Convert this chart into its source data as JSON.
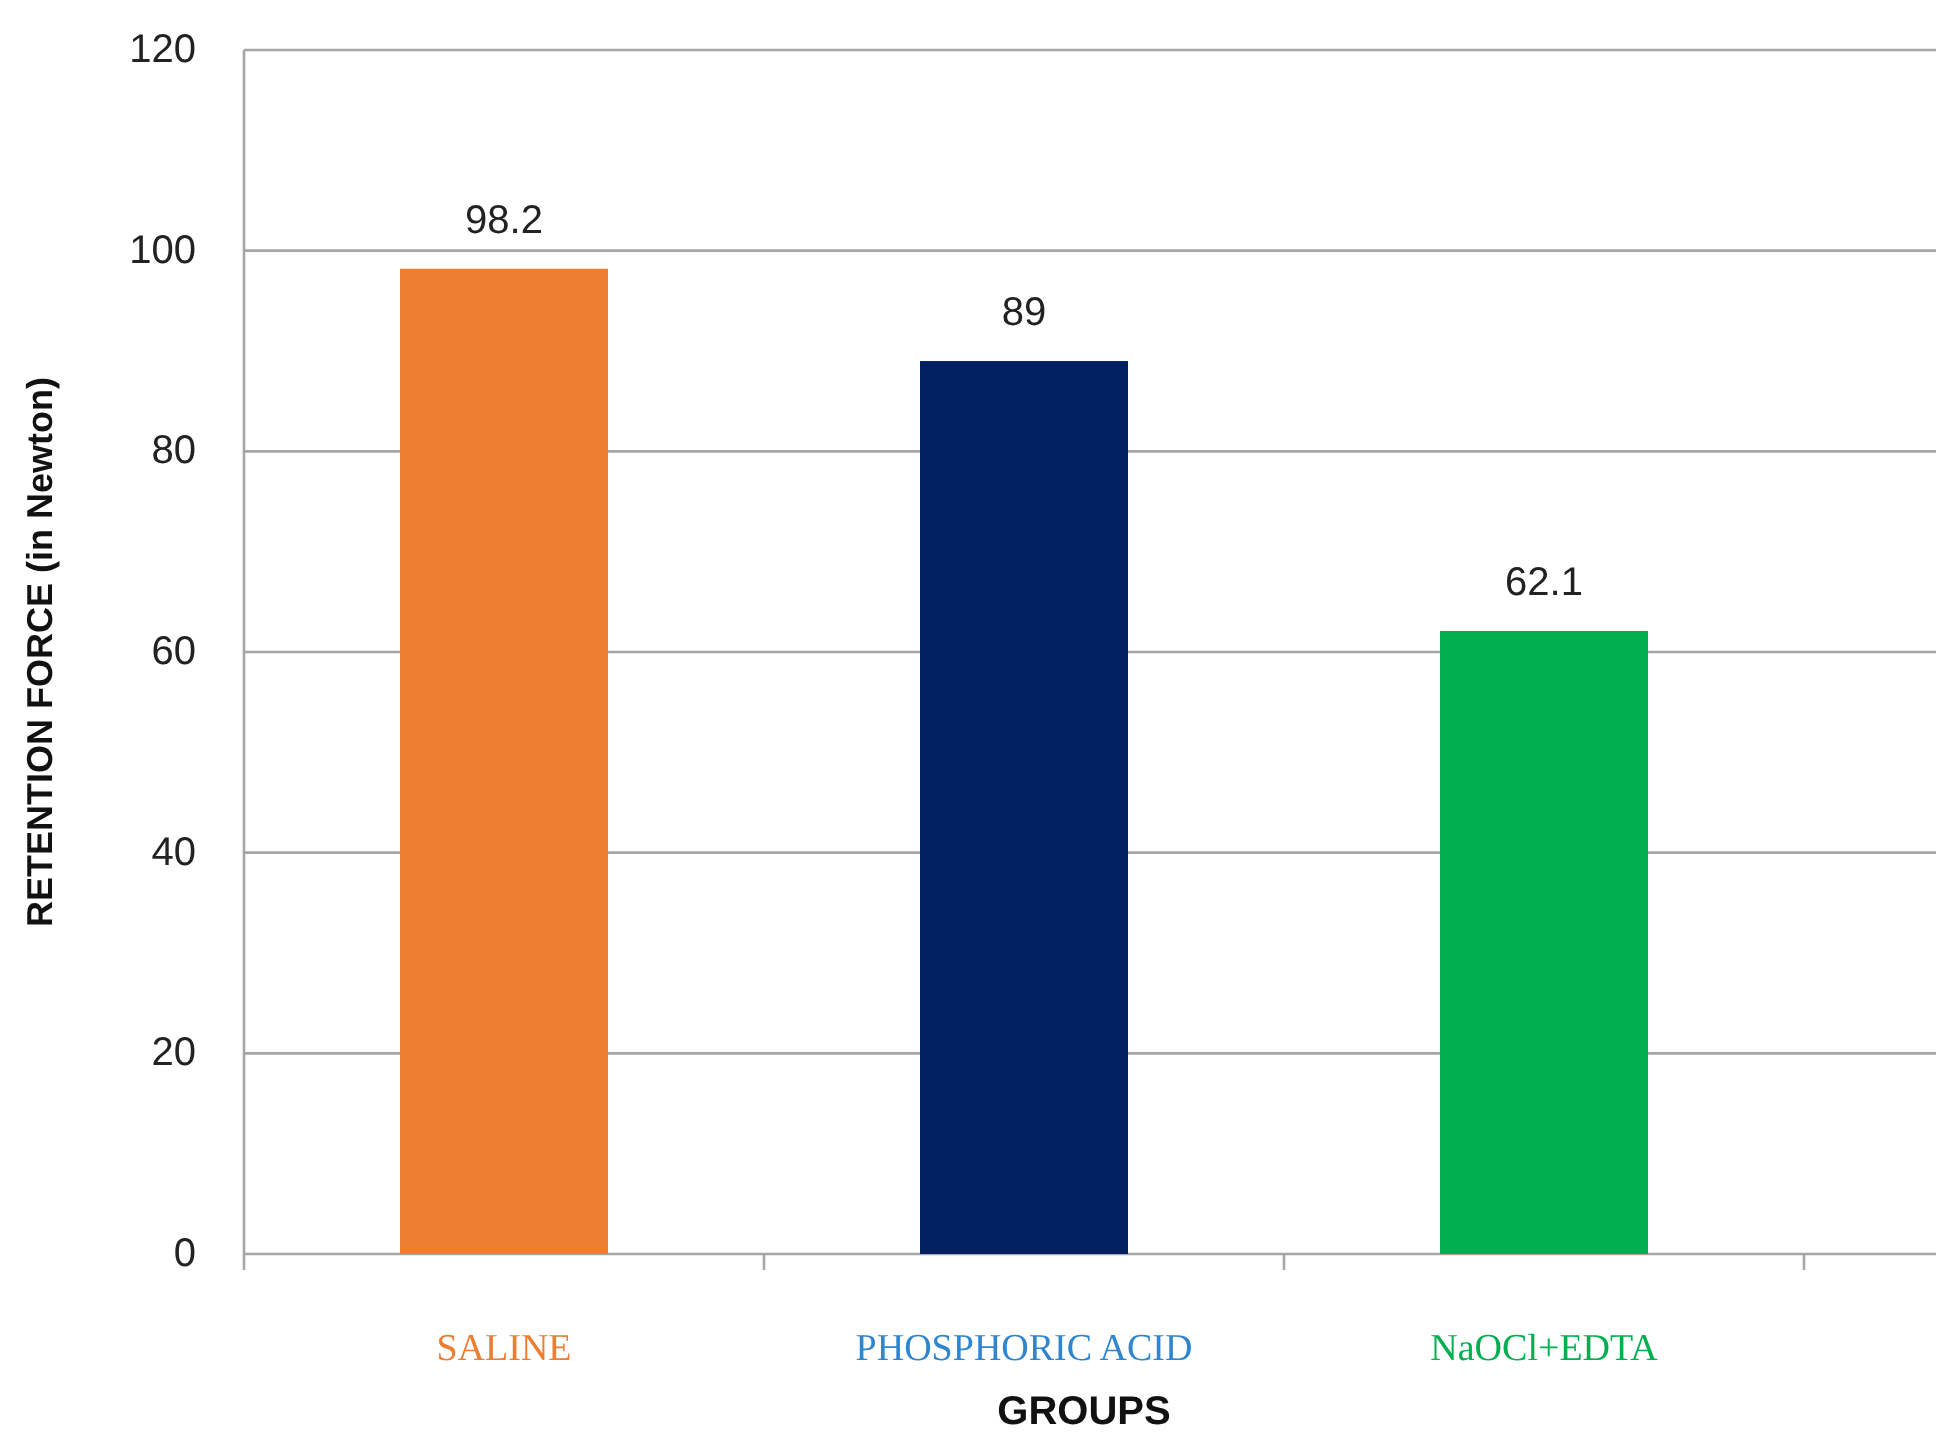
{
  "chart_data": {
    "type": "bar",
    "xlabel": "GROUPS",
    "ylabel": "RETENTION FORCE (in Newton)",
    "categories": [
      "SALINE",
      "PHOSPHORIC ACID",
      "NaOCl+EDTA"
    ],
    "values": [
      98.2,
      89,
      62.1
    ],
    "colors": [
      "#ed7d31",
      "#002060",
      "#00b050"
    ],
    "ylim": [
      0,
      120
    ],
    "yticks": [
      0,
      20,
      40,
      60,
      80,
      100,
      120
    ],
    "grid": "y",
    "data_labels": true
  }
}
